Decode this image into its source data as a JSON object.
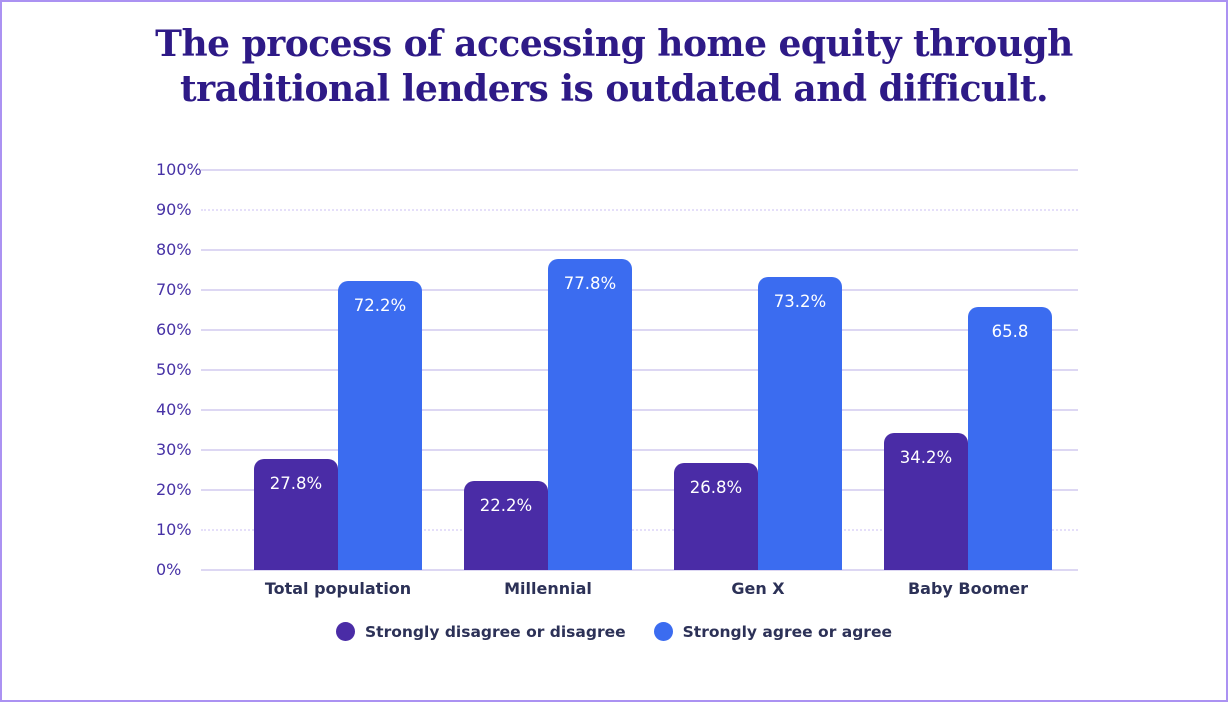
{
  "title": {
    "line1": "The process of accessing home equity through",
    "line2": "traditional lenders is outdated and difficult."
  },
  "colors": {
    "page_border": "#ab92f2",
    "title_text": "#2e1a87",
    "y_tick_text": "#4732a6",
    "category_text": "#2c3157",
    "gridline": "#ddd7f3",
    "bar_value_text": "#ffffff"
  },
  "chart_data": {
    "type": "bar",
    "title": "The process of accessing home equity through traditional lenders is outdated and difficult.",
    "categories": [
      "Total population",
      "Millennial",
      "Gen X",
      "Baby Boomer"
    ],
    "series": [
      {
        "name": "Strongly disagree or disagree",
        "color": "#4a2ca6",
        "values": [
          27.8,
          22.2,
          26.8,
          34.2
        ],
        "labels": [
          "27.8%",
          "22.2%",
          "26.8%",
          "34.2%"
        ]
      },
      {
        "name": "Strongly agree or agree",
        "color": "#3b6cf0",
        "values": [
          72.2,
          77.8,
          73.2,
          65.8
        ],
        "labels": [
          "72.2%",
          "77.8%",
          "73.2%",
          "65.8"
        ]
      }
    ],
    "xlabel": "",
    "ylabel": "",
    "ylim": [
      0,
      100
    ],
    "yticks": [
      "0%",
      "10%",
      "20%",
      "30%",
      "40%",
      "50%",
      "60%",
      "70%",
      "80%",
      "90%",
      "100%"
    ],
    "dashed_gridlines_at": [
      10,
      90
    ],
    "grid": true,
    "legend_position": "bottom"
  }
}
